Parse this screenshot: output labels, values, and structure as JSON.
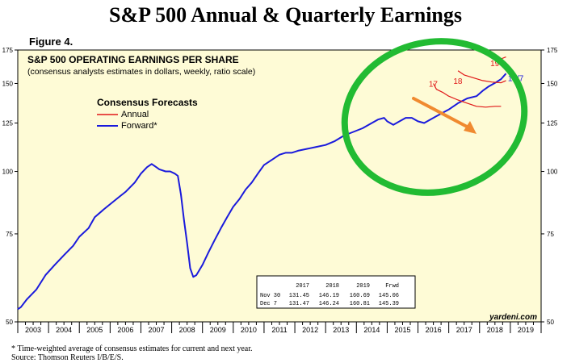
{
  "title": "S&P 500 Annual & Quarterly Earnings",
  "figure_label": "Figure 4.",
  "colors": {
    "forward": "#1a1adc",
    "annual": "#e01818",
    "annotation": "#22bb33",
    "arrow": "#f08a30",
    "plot_bg": "#fefbd6",
    "table_bg": "#ffffff"
  },
  "chart_data": {
    "type": "line",
    "title": "S&P 500 OPERATING EARNINGS PER SHARE",
    "subtitle": "(consensus analysts estimates in dollars, weekly, ratio scale)",
    "legend_title": "Consensus Forecasts",
    "legend": [
      "Annual",
      "Forward*"
    ],
    "y_scale": "log",
    "ylim": [
      50,
      175
    ],
    "y_ticks": [
      50,
      75,
      100,
      125,
      150,
      175
    ],
    "xlim": [
      2003,
      2020
    ],
    "x_tick_labels": [
      "2003",
      "2004",
      "2005",
      "2006",
      "2007",
      "2008",
      "2009",
      "2010",
      "2011",
      "2012",
      "2013",
      "2014",
      "2015",
      "2016",
      "2017",
      "2018",
      "2019"
    ],
    "series": [
      {
        "name": "Forward*",
        "points": [
          [
            2003.0,
            53
          ],
          [
            2003.1,
            53.5
          ],
          [
            2003.3,
            55.5
          ],
          [
            2003.6,
            58
          ],
          [
            2003.9,
            62
          ],
          [
            2004.2,
            65
          ],
          [
            2004.5,
            68
          ],
          [
            2004.8,
            71
          ],
          [
            2005.0,
            74
          ],
          [
            2005.3,
            77
          ],
          [
            2005.5,
            81
          ],
          [
            2005.8,
            84
          ],
          [
            2006.0,
            86
          ],
          [
            2006.3,
            89
          ],
          [
            2006.5,
            91
          ],
          [
            2006.8,
            95
          ],
          [
            2007.0,
            99
          ],
          [
            2007.2,
            102
          ],
          [
            2007.35,
            103.5
          ],
          [
            2007.5,
            102
          ],
          [
            2007.6,
            101
          ],
          [
            2007.8,
            100
          ],
          [
            2007.95,
            100
          ],
          [
            2008.1,
            99
          ],
          [
            2008.2,
            98
          ],
          [
            2008.3,
            90
          ],
          [
            2008.4,
            80
          ],
          [
            2008.5,
            72
          ],
          [
            2008.6,
            64
          ],
          [
            2008.7,
            61.5
          ],
          [
            2008.8,
            62
          ],
          [
            2008.9,
            63.5
          ],
          [
            2009.0,
            65
          ],
          [
            2009.2,
            69
          ],
          [
            2009.4,
            73
          ],
          [
            2009.6,
            77
          ],
          [
            2009.8,
            81
          ],
          [
            2010.0,
            85
          ],
          [
            2010.2,
            88
          ],
          [
            2010.4,
            92
          ],
          [
            2010.6,
            95
          ],
          [
            2010.8,
            99
          ],
          [
            2011.0,
            103
          ],
          [
            2011.3,
            106
          ],
          [
            2011.5,
            108
          ],
          [
            2011.7,
            109
          ],
          [
            2011.9,
            109
          ],
          [
            2012.1,
            110
          ],
          [
            2012.4,
            111
          ],
          [
            2012.7,
            112
          ],
          [
            2013.0,
            113
          ],
          [
            2013.3,
            115
          ],
          [
            2013.6,
            118
          ],
          [
            2013.9,
            120
          ],
          [
            2014.2,
            122
          ],
          [
            2014.5,
            125
          ],
          [
            2014.7,
            127
          ],
          [
            2014.9,
            128
          ],
          [
            2015.0,
            126
          ],
          [
            2015.2,
            124
          ],
          [
            2015.4,
            126
          ],
          [
            2015.6,
            128
          ],
          [
            2015.8,
            128
          ],
          [
            2016.0,
            126
          ],
          [
            2016.2,
            125
          ],
          [
            2016.4,
            127
          ],
          [
            2016.6,
            129
          ],
          [
            2016.8,
            131
          ],
          [
            2017.0,
            133
          ],
          [
            2017.3,
            137
          ],
          [
            2017.6,
            140
          ],
          [
            2017.9,
            141.5
          ],
          [
            2018.1,
            145
          ],
          [
            2018.3,
            148
          ],
          [
            2018.55,
            151
          ],
          [
            2018.7,
            153
          ],
          [
            2018.86,
            157
          ]
        ]
      },
      {
        "name": "Annual 2017",
        "points": [
          [
            2016.5,
            150
          ],
          [
            2016.6,
            146
          ],
          [
            2016.8,
            144
          ],
          [
            2017.0,
            141.5
          ],
          [
            2017.3,
            139
          ],
          [
            2017.6,
            137
          ],
          [
            2017.9,
            135
          ],
          [
            2018.2,
            134.5
          ],
          [
            2018.5,
            135
          ],
          [
            2018.7,
            135
          ]
        ]
      },
      {
        "name": "Annual 2018",
        "points": [
          [
            2017.3,
            159
          ],
          [
            2017.5,
            156
          ],
          [
            2017.8,
            154
          ],
          [
            2018.1,
            152
          ],
          [
            2018.4,
            151
          ],
          [
            2018.7,
            150.5
          ],
          [
            2018.86,
            152
          ]
        ]
      },
      {
        "name": "Annual 2019",
        "points": [
          [
            2018.55,
            167
          ],
          [
            2018.7,
            168
          ],
          [
            2018.86,
            169.5
          ]
        ]
      }
    ],
    "annotations": [
      {
        "text": "17",
        "x": 2016.35,
        "y": 150
      },
      {
        "text": "18",
        "x": 2017.15,
        "y": 152
      },
      {
        "text": "19",
        "x": 2018.35,
        "y": 165
      },
      {
        "text": "12/7",
        "x": 2018.92,
        "y": 154
      }
    ],
    "table": {
      "headers": [
        "",
        "2017",
        "2018",
        "2019",
        "Frwd"
      ],
      "rows": [
        [
          "Nov 30",
          "131.45",
          "146.19",
          "160.69",
          "145.06"
        ],
        [
          "Dec  7",
          "131.47",
          "146.24",
          "160.81",
          "145.39"
        ]
      ]
    },
    "watermark": "yardeni.com"
  },
  "footnote": {
    "line1": "*  Time-weighted average of consensus estimates for current and next year.",
    "line2": "Source: Thomson Reuters I/B/E/S."
  }
}
